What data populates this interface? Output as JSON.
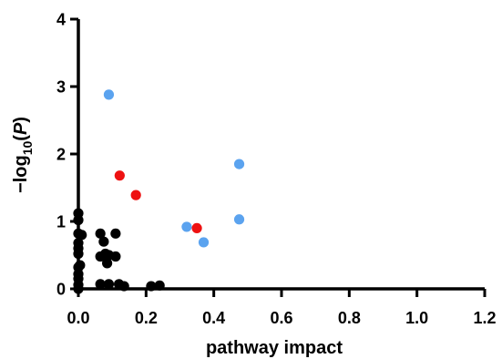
{
  "chart_data": {
    "type": "scatter",
    "xlabel": "pathway impact",
    "ylabel": {
      "prefix": "−log",
      "subscript": "10",
      "paren_open": "(",
      "variable": "P",
      "paren_close": ")"
    },
    "xlim": [
      0,
      1.2
    ],
    "ylim": [
      0,
      4
    ],
    "x_ticks": [
      0.0,
      0.2,
      0.4,
      0.6,
      0.8,
      1.0,
      1.2
    ],
    "x_tick_labels": [
      "0.0",
      "0.2",
      "0.4",
      "0.6",
      "0.8",
      "1.0",
      "1.2"
    ],
    "y_ticks": [
      0,
      1,
      2,
      3,
      4
    ],
    "y_tick_labels": [
      "0",
      "1",
      "2",
      "3",
      "4"
    ],
    "grid": false,
    "series": [
      {
        "color": "#000000",
        "points": [
          [
            0.0,
            1.12
          ],
          [
            0.0,
            1.02
          ],
          [
            0.0,
            0.82
          ],
          [
            0.0,
            0.68
          ],
          [
            0.0,
            0.6
          ],
          [
            0.0,
            0.52
          ],
          [
            0.0,
            0.32
          ],
          [
            0.0,
            0.22
          ],
          [
            0.0,
            0.15
          ],
          [
            0.0,
            0.06
          ],
          [
            0.0,
            0.0
          ],
          [
            0.005,
            0.35
          ],
          [
            0.01,
            0.8
          ],
          [
            0.065,
            0.82
          ],
          [
            0.065,
            0.48
          ],
          [
            0.065,
            0.07
          ],
          [
            0.075,
            0.7
          ],
          [
            0.08,
            0.52
          ],
          [
            0.085,
            0.38
          ],
          [
            0.09,
            0.5
          ],
          [
            0.09,
            0.07
          ],
          [
            0.11,
            0.82
          ],
          [
            0.11,
            0.48
          ],
          [
            0.12,
            0.07
          ],
          [
            0.135,
            0.04
          ],
          [
            0.215,
            0.04
          ],
          [
            0.24,
            0.05
          ]
        ]
      },
      {
        "color": "#5ba3ef",
        "points": [
          [
            0.09,
            2.88
          ],
          [
            0.475,
            1.85
          ],
          [
            0.32,
            0.92
          ],
          [
            0.475,
            1.03
          ],
          [
            0.37,
            0.69
          ]
        ]
      },
      {
        "color": "#ee1111",
        "points": [
          [
            0.122,
            1.68
          ],
          [
            0.17,
            1.39
          ],
          [
            0.35,
            0.9
          ]
        ]
      }
    ]
  }
}
